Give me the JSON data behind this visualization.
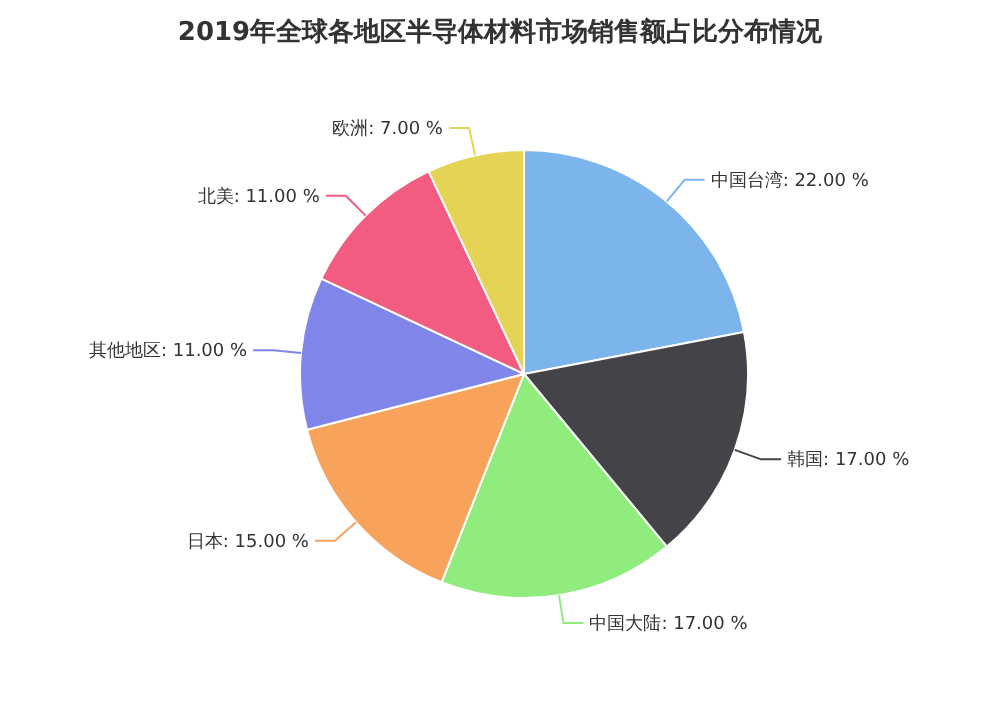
{
  "chart_data": {
    "type": "pie",
    "title": "2019年全球各地区半导体材料市场销售额占比分布情况",
    "categories": [
      "中国台湾",
      "韩国",
      "中国大陆",
      "日本",
      "其他地区",
      "北美",
      "欧洲"
    ],
    "values": [
      22,
      17,
      17,
      15,
      11,
      11,
      7
    ],
    "value_labels": [
      "22.00 %",
      "17.00 %",
      "17.00 %",
      "15.00 %",
      "11.00 %",
      "11.00 %",
      "7.00 %"
    ],
    "colors": [
      "#7cb5ec",
      "#434348",
      "#90ed7d",
      "#f7a35c",
      "#8085e9",
      "#f15c80",
      "#e4d354"
    ]
  }
}
